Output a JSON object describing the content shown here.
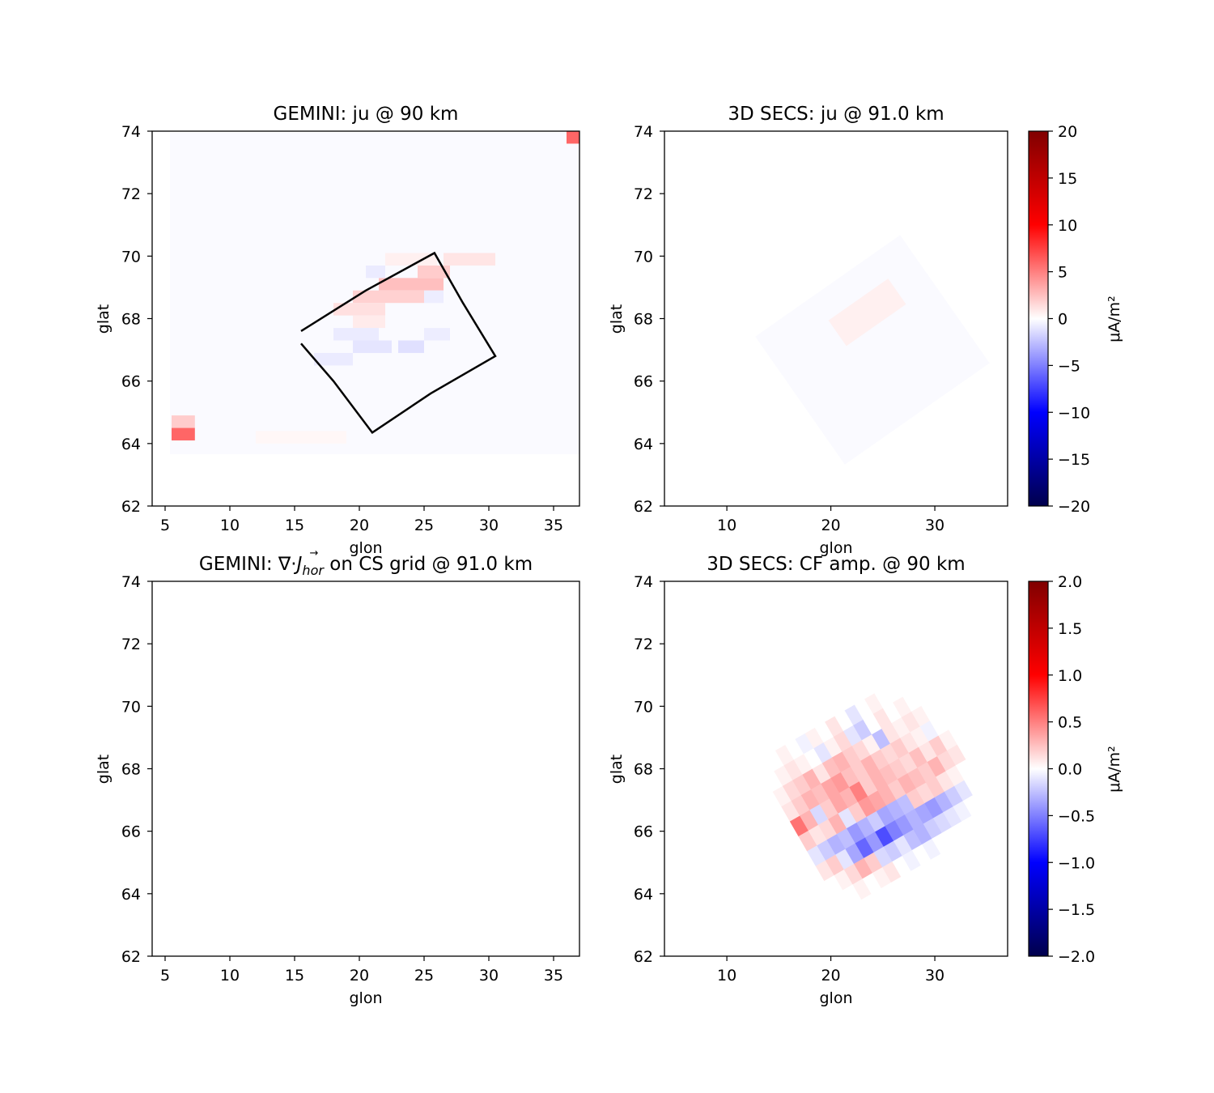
{
  "chart_data": [
    {
      "type": "heatmap",
      "title": "GEMINI: ju @ 90 km",
      "xlabel": "glon",
      "ylabel": "glat",
      "xlim": [
        4,
        37
      ],
      "ylim": [
        62,
        74
      ],
      "xticks": [
        5,
        10,
        15,
        20,
        25,
        30,
        35
      ],
      "yticks": [
        62,
        64,
        66,
        68,
        70,
        72,
        74
      ],
      "xtick_labels": [
        "5",
        "10",
        "15",
        "20",
        "25",
        "30",
        "35"
      ],
      "ytick_labels": [
        "62",
        "64",
        "66",
        "68",
        "70",
        "72",
        "74"
      ],
      "colormap": "seismic",
      "vlim": [
        -20,
        20
      ],
      "background_value": -0.2,
      "cells": [
        {
          "lon": [
            36,
            37
          ],
          "lat": [
            73.6,
            74.0
          ],
          "value": 6
        },
        {
          "lon": [
            5.5,
            7.3
          ],
          "lat": [
            64.1,
            64.5
          ],
          "value": 6
        },
        {
          "lon": [
            5.5,
            7.3
          ],
          "lat": [
            64.5,
            64.9
          ],
          "value": 2
        },
        {
          "lon": [
            21.5,
            26.5
          ],
          "lat": [
            68.9,
            69.3
          ],
          "value": 2.5
        },
        {
          "lon": [
            24.5,
            27
          ],
          "lat": [
            69.3,
            69.7
          ],
          "value": 2
        },
        {
          "lon": [
            26.5,
            30.5
          ],
          "lat": [
            69.7,
            70.1
          ],
          "value": 1
        },
        {
          "lon": [
            19.5,
            25
          ],
          "lat": [
            68.5,
            68.9
          ],
          "value": 1.8
        },
        {
          "lon": [
            18,
            22
          ],
          "lat": [
            68.1,
            68.5
          ],
          "value": 1.2
        },
        {
          "lon": [
            19.5,
            22
          ],
          "lat": [
            67.7,
            68.1
          ],
          "value": 0.8
        },
        {
          "lon": [
            18,
            21.5
          ],
          "lat": [
            67.3,
            67.7
          ],
          "value": -0.8
        },
        {
          "lon": [
            19.5,
            22.5
          ],
          "lat": [
            66.9,
            67.3
          ],
          "value": -1
        },
        {
          "lon": [
            23,
            25
          ],
          "lat": [
            66.9,
            67.3
          ],
          "value": -1.2
        },
        {
          "lon": [
            16.5,
            19.5
          ],
          "lat": [
            66.5,
            66.9
          ],
          "value": -0.8
        },
        {
          "lon": [
            25,
            27
          ],
          "lat": [
            67.3,
            67.7
          ],
          "value": -0.7
        },
        {
          "lon": [
            25,
            26.5
          ],
          "lat": [
            68.5,
            68.9
          ],
          "value": -0.7
        },
        {
          "lon": [
            20.5,
            22
          ],
          "lat": [
            69.3,
            69.7
          ],
          "value": -0.8
        },
        {
          "lon": [
            12,
            19
          ],
          "lat": [
            64.0,
            64.4
          ],
          "value": 0.3
        },
        {
          "lon": [
            22,
            26
          ],
          "lat": [
            69.7,
            70.1
          ],
          "value": 0.6
        }
      ],
      "region_outline_lonlat": [
        [
          15.5,
          67.2
        ],
        [
          18,
          66.0
        ],
        [
          21,
          64.35
        ],
        [
          25.5,
          65.6
        ],
        [
          30.5,
          66.8
        ],
        [
          28,
          68.5
        ],
        [
          25.8,
          70.1
        ],
        [
          20.5,
          68.9
        ],
        [
          15.5,
          67.6
        ]
      ]
    },
    {
      "type": "heatmap",
      "title": "3D SECS: ju @ 91.0 km",
      "xlabel": "glon",
      "ylabel": "glat",
      "xlim": [
        4,
        37
      ],
      "ylim": [
        62,
        74
      ],
      "xticks": [
        10,
        20,
        30
      ],
      "yticks": [
        62,
        64,
        66,
        68,
        70,
        72,
        74
      ],
      "xtick_labels": [
        "10",
        "20",
        "30"
      ],
      "ytick_labels": [
        "62",
        "64",
        "66",
        "68",
        "70",
        "72",
        "74"
      ],
      "colormap": "seismic",
      "vlim": [
        -20,
        20
      ],
      "colorbar": {
        "label": "μA/m²",
        "ticks": [
          20,
          15,
          10,
          5,
          0,
          -5,
          -10,
          -15,
          -20
        ],
        "tick_labels": [
          "20",
          "15",
          "10",
          "5",
          "0",
          "−5",
          "−10",
          "−15",
          "−20"
        ]
      },
      "cells": [
        {
          "lon": [
            15.5,
            32.5
          ],
          "lat": [
            64.5,
            69.5
          ],
          "value": -0.2,
          "rotated": true
        },
        {
          "lon": [
            20,
            27
          ],
          "lat": [
            67.7,
            68.7
          ],
          "value": 0.6,
          "rotated": true
        }
      ]
    },
    {
      "type": "heatmap",
      "title": "GEMINI: ∇·J_hor on CS grid @ 91.0 km",
      "xlabel": "glon",
      "ylabel": "glat",
      "xlim": [
        4,
        37
      ],
      "ylim": [
        62,
        74
      ],
      "xticks": [
        5,
        10,
        15,
        20,
        25,
        30,
        35
      ],
      "yticks": [
        62,
        64,
        66,
        68,
        70,
        72,
        74
      ],
      "xtick_labels": [
        "5",
        "10",
        "15",
        "20",
        "25",
        "30",
        "35"
      ],
      "ytick_labels": [
        "62",
        "64",
        "66",
        "68",
        "70",
        "72",
        "74"
      ],
      "cells": []
    },
    {
      "type": "heatmap",
      "title": "3D SECS: CF amp. @ 90 km",
      "xlabel": "glon",
      "ylabel": "glat",
      "xlim": [
        4,
        37
      ],
      "ylim": [
        62,
        74
      ],
      "xticks": [
        10,
        20,
        30
      ],
      "yticks": [
        62,
        64,
        66,
        68,
        70,
        72,
        74
      ],
      "xtick_labels": [
        "10",
        "20",
        "30"
      ],
      "ytick_labels": [
        "62",
        "64",
        "66",
        "68",
        "70",
        "72",
        "74"
      ],
      "colormap": "seismic",
      "vlim": [
        -2,
        2
      ],
      "colorbar": {
        "label": "μA/m²",
        "ticks": [
          2.0,
          1.5,
          1.0,
          0.5,
          0.0,
          -0.5,
          -1.0,
          -1.5,
          -2.0
        ],
        "tick_labels": [
          "2.0",
          "1.5",
          "1.0",
          "0.5",
          "0.0",
          "−0.5",
          "−1.0",
          "−1.5",
          "−2.0"
        ]
      },
      "grid": {
        "center_lon": 24.5,
        "center_lat": 67.3,
        "rotation_deg": 30,
        "cols": 16,
        "rows": 10,
        "cell_lon": 1.1,
        "cell_lat": 0.55,
        "values": [
          [
            0.0,
            0.0,
            0.05,
            0.0,
            -0.05,
            0.05,
            0.0,
            0.1,
            0.0,
            -0.1,
            0.0,
            0.05,
            0.0,
            0.0,
            0.0,
            0.0
          ],
          [
            0.0,
            0.05,
            0.1,
            0.05,
            0.0,
            -0.1,
            0.05,
            0.15,
            -0.1,
            -0.2,
            0.0,
            0.1,
            0.0,
            0.05,
            0.0,
            0.0
          ],
          [
            0.05,
            0.15,
            0.2,
            0.3,
            0.1,
            0.25,
            0.3,
            0.2,
            0.15,
            0.05,
            -0.25,
            0.1,
            0.05,
            0.1,
            0.05,
            0.0
          ],
          [
            0.1,
            0.2,
            0.3,
            0.25,
            0.35,
            0.4,
            0.25,
            0.2,
            0.3,
            0.2,
            0.15,
            0.2,
            0.1,
            0.05,
            -0.05,
            0.0
          ],
          [
            0.55,
            0.3,
            -0.15,
            0.2,
            0.35,
            0.3,
            0.5,
            0.2,
            0.3,
            0.25,
            0.2,
            0.15,
            0.25,
            0.1,
            0.2,
            0.05
          ],
          [
            0.2,
            0.1,
            0.15,
            0.3,
            -0.1,
            0.2,
            0.4,
            0.35,
            0.3,
            0.2,
            0.3,
            0.25,
            0.2,
            0.3,
            0.15,
            0.1
          ],
          [
            -0.1,
            -0.2,
            -0.3,
            -0.25,
            -0.4,
            -0.3,
            -0.2,
            -0.35,
            -0.3,
            -0.25,
            0.2,
            0.15,
            0.2,
            0.1,
            0.05,
            0.0
          ],
          [
            0.1,
            0.2,
            -0.1,
            -0.35,
            -0.6,
            -0.4,
            -0.7,
            -0.5,
            -0.4,
            -0.3,
            -0.35,
            -0.4,
            -0.3,
            -0.2,
            -0.1,
            0.0
          ],
          [
            0.0,
            0.05,
            0.15,
            0.3,
            0.2,
            -0.15,
            -0.2,
            -0.1,
            -0.25,
            -0.3,
            -0.2,
            -0.15,
            -0.1,
            -0.05,
            0.0,
            0.0
          ],
          [
            0.0,
            0.0,
            0.05,
            0.0,
            0.05,
            0.1,
            0.0,
            -0.05,
            0.0,
            -0.05,
            0.0,
            0.0,
            0.0,
            0.0,
            0.0,
            0.0
          ]
        ]
      }
    }
  ]
}
